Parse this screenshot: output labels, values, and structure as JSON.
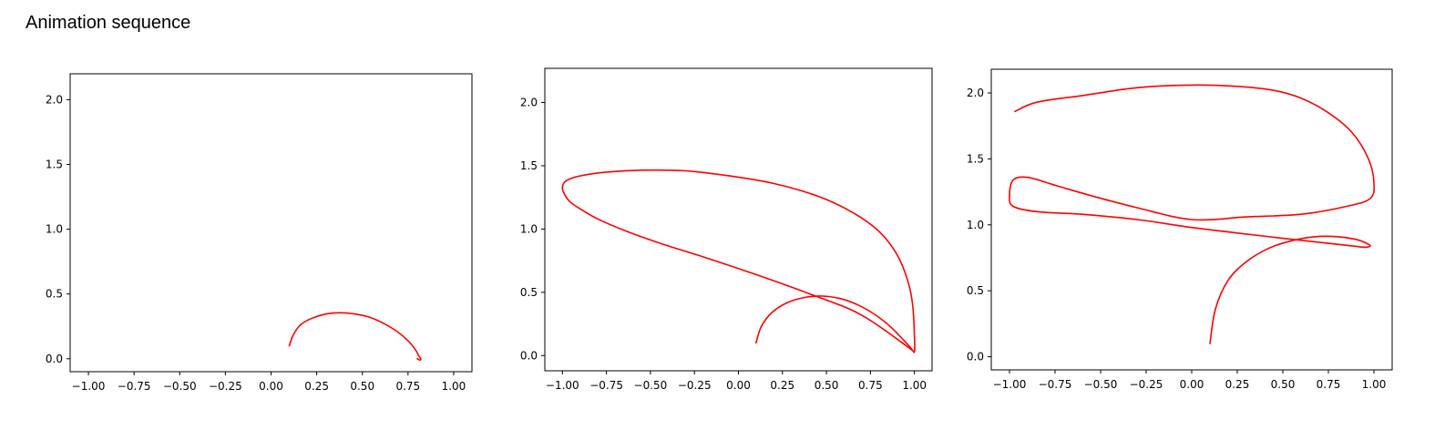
{
  "page": {
    "title": "Animation sequence"
  },
  "chart_data": [
    {
      "type": "line",
      "xlim": [
        -1.1,
        1.1
      ],
      "ylim": [
        -0.1,
        2.2
      ],
      "xticks": [
        "−1.00",
        "−0.75",
        "−0.50",
        "−0.25",
        "0.00",
        "0.25",
        "0.50",
        "0.75",
        "1.00"
      ],
      "xtick_values": [
        -1.0,
        -0.75,
        -0.5,
        -0.25,
        0.0,
        0.25,
        0.5,
        0.75,
        1.0
      ],
      "yticks": [
        "0.0",
        "0.5",
        "1.0",
        "1.5",
        "2.0"
      ],
      "ytick_values": [
        0.0,
        0.5,
        1.0,
        1.5,
        2.0
      ],
      "grid": false,
      "color": "#ff0000",
      "series": [
        {
          "x": [
            0.1,
            0.12,
            0.16,
            0.22,
            0.3,
            0.38,
            0.46,
            0.54,
            0.62,
            0.69,
            0.75,
            0.79,
            0.81,
            0.82,
            0.815,
            0.8
          ],
          "y": [
            0.1,
            0.18,
            0.26,
            0.31,
            0.345,
            0.355,
            0.345,
            0.32,
            0.27,
            0.21,
            0.14,
            0.07,
            0.02,
            0.0,
            -0.01,
            0.0
          ]
        }
      ]
    },
    {
      "type": "line",
      "xlim": [
        -1.1,
        1.1
      ],
      "ylim": [
        -0.12,
        2.27
      ],
      "xticks": [
        "−1.00",
        "−0.75",
        "−0.50",
        "−0.25",
        "0.00",
        "0.25",
        "0.50",
        "0.75",
        "1.00"
      ],
      "xtick_values": [
        -1.0,
        -0.75,
        -0.5,
        -0.25,
        0.0,
        0.25,
        0.5,
        0.75,
        1.0
      ],
      "yticks": [
        "0.0",
        "0.5",
        "1.0",
        "1.5",
        "2.0"
      ],
      "ytick_values": [
        0.0,
        0.5,
        1.0,
        1.5,
        2.0
      ],
      "grid": false,
      "color": "#ff0000",
      "series": [
        {
          "x": [
            0.1,
            0.13,
            0.19,
            0.28,
            0.38,
            0.48,
            0.58,
            0.68,
            0.78,
            0.87,
            0.94,
            0.98,
            1.0,
            1.0,
            0.99,
            0.96,
            0.9,
            0.8,
            0.65,
            0.45,
            0.2,
            -0.05,
            -0.3,
            -0.55,
            -0.75,
            -0.9,
            -0.98,
            -1.0,
            -0.99,
            -0.96,
            -0.9,
            -0.8,
            -0.65,
            -0.45,
            -0.2,
            0.1,
            0.4,
            0.7,
            1.0
          ],
          "y": [
            0.1,
            0.23,
            0.34,
            0.42,
            0.46,
            0.47,
            0.45,
            0.4,
            0.32,
            0.22,
            0.12,
            0.06,
            0.03,
            0.15,
            0.4,
            0.6,
            0.8,
            0.98,
            1.13,
            1.26,
            1.36,
            1.42,
            1.46,
            1.465,
            1.45,
            1.42,
            1.38,
            1.33,
            1.28,
            1.22,
            1.16,
            1.08,
            0.99,
            0.89,
            0.78,
            0.64,
            0.49,
            0.32,
            0.03
          ]
        }
      ]
    },
    {
      "type": "line",
      "xlim": [
        -1.1,
        1.1
      ],
      "ylim": [
        -0.1,
        2.18
      ],
      "xticks": [
        "−1.00",
        "−0.75",
        "−0.50",
        "−0.25",
        "0.00",
        "0.25",
        "0.50",
        "0.75",
        "1.00"
      ],
      "xtick_values": [
        -1.0,
        -0.75,
        -0.5,
        -0.25,
        0.0,
        0.25,
        0.5,
        0.75,
        1.0
      ],
      "yticks": [
        "0.0",
        "0.5",
        "1.0",
        "1.5",
        "2.0"
      ],
      "ytick_values": [
        0.0,
        0.5,
        1.0,
        1.5,
        2.0
      ],
      "grid": false,
      "color": "#ff0000",
      "series": [
        {
          "x": [
            0.1,
            0.13,
            0.2,
            0.3,
            0.42,
            0.55,
            0.68,
            0.8,
            0.9,
            0.96,
            0.98,
            0.95,
            0.88,
            0.75,
            0.55,
            0.3,
            0.0,
            -0.3,
            -0.6,
            -0.85,
            -0.98,
            -1.0,
            -0.98,
            -0.9,
            -0.75,
            -0.55,
            -0.3,
            0.0,
            0.3,
            0.6,
            0.85,
            0.98,
            1.0,
            0.97,
            0.88,
            0.75,
            0.6,
            0.45,
            0.25,
            0.0,
            -0.3,
            -0.6,
            -0.85,
            -0.97
          ],
          "y": [
            0.1,
            0.36,
            0.58,
            0.72,
            0.82,
            0.88,
            0.91,
            0.91,
            0.89,
            0.86,
            0.84,
            0.83,
            0.84,
            0.86,
            0.89,
            0.93,
            0.98,
            1.04,
            1.08,
            1.1,
            1.14,
            1.22,
            1.34,
            1.36,
            1.3,
            1.22,
            1.13,
            1.04,
            1.06,
            1.08,
            1.14,
            1.2,
            1.32,
            1.5,
            1.7,
            1.85,
            1.96,
            2.02,
            2.05,
            2.06,
            2.04,
            1.98,
            1.93,
            1.86
          ]
        }
      ]
    }
  ]
}
